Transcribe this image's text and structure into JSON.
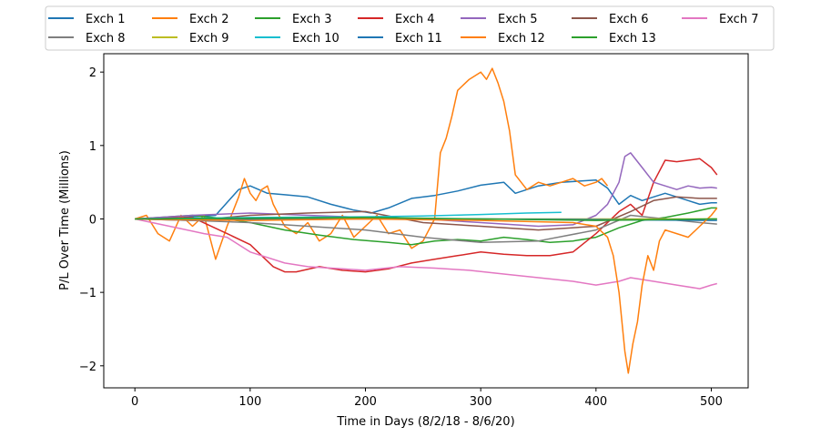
{
  "chart_data": {
    "type": "line",
    "xlabel": "Time in Days (8/2/18 - 8/6/20)",
    "ylabel": "P/L Over Time (Millions)",
    "offset_label": "1e7",
    "xlim": [
      -27,
      532
    ],
    "ylim": [
      -2.3,
      2.25
    ],
    "xticks": [
      0,
      100,
      200,
      300,
      400,
      500
    ],
    "yticks": [
      -2,
      -1,
      0,
      1,
      2
    ],
    "grid": false,
    "legend_position": "top",
    "series": [
      {
        "name": "Exch 1",
        "color": "#1f77b4",
        "x": [
          0,
          40,
          70,
          90,
          100,
          115,
          130,
          150,
          170,
          190,
          205,
          220,
          240,
          260,
          280,
          300,
          320,
          330,
          350,
          370,
          400,
          410,
          420,
          430,
          440,
          450,
          460,
          470,
          480,
          490,
          500,
          505
        ],
        "y": [
          0,
          0.02,
          0.05,
          0.4,
          0.45,
          0.35,
          0.33,
          0.3,
          0.2,
          0.12,
          0.08,
          0.15,
          0.28,
          0.32,
          0.38,
          0.46,
          0.5,
          0.35,
          0.45,
          0.5,
          0.53,
          0.42,
          0.2,
          0.32,
          0.25,
          0.3,
          0.35,
          0.3,
          0.25,
          0.2,
          0.22,
          0.22
        ]
      },
      {
        "name": "Exch 2",
        "color": "#ff7f0e",
        "x": [
          0,
          10,
          20,
          30,
          40,
          50,
          60,
          70,
          80,
          90,
          95,
          100,
          105,
          110,
          115,
          120,
          130,
          140,
          150,
          160,
          170,
          180,
          190,
          200,
          210,
          220,
          230,
          240,
          250,
          260,
          265,
          270,
          275,
          280,
          290,
          300,
          305,
          310,
          315,
          320,
          325,
          330,
          340,
          350,
          360,
          370,
          380,
          390,
          400,
          405,
          410
        ],
        "y": [
          0,
          0.05,
          -0.2,
          -0.3,
          0.05,
          -0.1,
          0.05,
          -0.55,
          -0.1,
          0.3,
          0.55,
          0.35,
          0.25,
          0.4,
          0.45,
          0.2,
          -0.1,
          -0.2,
          -0.05,
          -0.3,
          -0.2,
          0.05,
          -0.25,
          -0.1,
          0.05,
          -0.2,
          -0.15,
          -0.4,
          -0.3,
          0,
          0.9,
          1.1,
          1.4,
          1.75,
          1.9,
          2.0,
          1.9,
          2.05,
          1.85,
          1.6,
          1.2,
          0.6,
          0.4,
          0.5,
          0.45,
          0.5,
          0.55,
          0.45,
          0.5,
          0.55,
          0.45
        ]
      },
      {
        "name": "Exch 3",
        "color": "#2ca02c",
        "x": [
          0,
          50,
          80,
          100,
          130,
          160,
          190,
          220,
          240,
          260,
          280,
          300,
          320,
          340,
          360,
          380,
          400,
          420,
          440,
          460,
          480,
          500,
          505
        ],
        "y": [
          0,
          0.05,
          0.0,
          -0.05,
          -0.15,
          -0.22,
          -0.28,
          -0.32,
          -0.35,
          -0.3,
          -0.28,
          -0.3,
          -0.25,
          -0.28,
          -0.32,
          -0.3,
          -0.25,
          -0.12,
          -0.02,
          0.02,
          0.08,
          0.15,
          0.15
        ]
      },
      {
        "name": "Exch 4",
        "color": "#d62728",
        "x": [
          0,
          50,
          80,
          100,
          110,
          120,
          130,
          140,
          160,
          180,
          200,
          220,
          240,
          260,
          280,
          300,
          320,
          340,
          360,
          380,
          400,
          420,
          430,
          440,
          450,
          460,
          470,
          480,
          490,
          500,
          505
        ],
        "y": [
          0,
          0.02,
          -0.2,
          -0.35,
          -0.5,
          -0.65,
          -0.72,
          -0.72,
          -0.65,
          -0.7,
          -0.72,
          -0.68,
          -0.6,
          -0.55,
          -0.5,
          -0.45,
          -0.48,
          -0.5,
          -0.5,
          -0.45,
          -0.2,
          0.1,
          0.2,
          0.05,
          0.5,
          0.8,
          0.78,
          0.8,
          0.82,
          0.7,
          0.6
        ]
      },
      {
        "name": "Exch 5",
        "color": "#9467bd",
        "x": [
          0,
          50,
          100,
          150,
          200,
          250,
          300,
          350,
          380,
          400,
          410,
          420,
          425,
          430,
          440,
          450,
          460,
          470,
          480,
          490,
          500,
          505
        ],
        "y": [
          0,
          0.05,
          0.08,
          0.05,
          0.02,
          0.0,
          -0.05,
          -0.1,
          -0.08,
          0.05,
          0.2,
          0.5,
          0.85,
          0.9,
          0.7,
          0.5,
          0.45,
          0.4,
          0.45,
          0.42,
          0.43,
          0.42
        ]
      },
      {
        "name": "Exch 6",
        "color": "#8c564b",
        "x": [
          0,
          50,
          100,
          150,
          200,
          250,
          300,
          350,
          400,
          430,
          450,
          470,
          490,
          505
        ],
        "y": [
          0,
          -0.02,
          0.05,
          0.08,
          0.1,
          -0.05,
          -0.1,
          -0.15,
          -0.1,
          0.1,
          0.25,
          0.3,
          0.28,
          0.28
        ]
      },
      {
        "name": "Exch 7",
        "color": "#e377c2",
        "x": [
          0,
          30,
          60,
          80,
          100,
          130,
          150,
          180,
          200,
          230,
          260,
          290,
          320,
          350,
          380,
          400,
          420,
          430,
          450,
          470,
          490,
          500,
          505
        ],
        "y": [
          0,
          -0.1,
          -0.2,
          -0.25,
          -0.45,
          -0.6,
          -0.65,
          -0.68,
          -0.7,
          -0.65,
          -0.67,
          -0.7,
          -0.75,
          -0.8,
          -0.85,
          -0.9,
          -0.85,
          -0.8,
          -0.85,
          -0.9,
          -0.95,
          -0.9,
          -0.88
        ]
      },
      {
        "name": "Exch 8",
        "color": "#7f7f7f",
        "x": [
          0,
          50,
          100,
          150,
          200,
          250,
          300,
          350,
          400,
          430,
          460,
          490,
          505
        ],
        "y": [
          0,
          -0.02,
          -0.05,
          -0.1,
          -0.15,
          -0.25,
          -0.32,
          -0.3,
          -0.15,
          0.05,
          0.0,
          -0.05,
          -0.07
        ]
      },
      {
        "name": "Exch 9",
        "color": "#bcbd22",
        "x": [
          0,
          100,
          200,
          300,
          400,
          505
        ],
        "y": [
          0,
          0.01,
          0.01,
          0.0,
          0.0,
          0.0
        ]
      },
      {
        "name": "Exch 10",
        "color": "#17becf",
        "x": [
          0,
          100,
          200,
          250,
          300,
          340,
          370
        ],
        "y": [
          0,
          0.02,
          0.03,
          0.04,
          0.06,
          0.08,
          0.09
        ]
      },
      {
        "name": "Exch 11",
        "color": "#1f77b4",
        "x": [
          0,
          100,
          200,
          300,
          400,
          500,
          505
        ],
        "y": [
          0,
          -0.01,
          0.0,
          0.0,
          -0.01,
          -0.02,
          -0.02
        ]
      },
      {
        "name": "Exch 12",
        "color": "#ff7f0e",
        "x": [
          0,
          100,
          200,
          300,
          380,
          400,
          410,
          415,
          420,
          425,
          428,
          432,
          436,
          440,
          445,
          450,
          455,
          460,
          470,
          480,
          490,
          500,
          505
        ],
        "y": [
          0,
          -0.02,
          0.0,
          -0.02,
          -0.05,
          -0.1,
          -0.25,
          -0.5,
          -1.0,
          -1.8,
          -2.1,
          -1.7,
          -1.4,
          -0.9,
          -0.5,
          -0.7,
          -0.3,
          -0.15,
          -0.2,
          -0.25,
          -0.1,
          0.05,
          0.15
        ]
      },
      {
        "name": "Exch 13",
        "color": "#2ca02c",
        "x": [
          0,
          100,
          200,
          300,
          400,
          500,
          505
        ],
        "y": [
          0,
          0.01,
          0.02,
          0.0,
          -0.02,
          0.0,
          0.0
        ]
      }
    ]
  }
}
